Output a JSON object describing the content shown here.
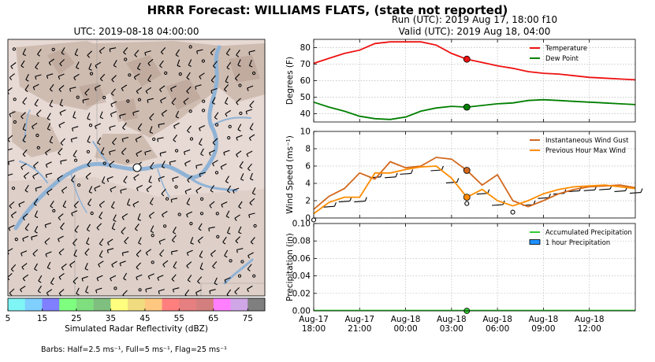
{
  "figure": {
    "suptitle": "HRRR Forecast: WILLIAMS FLATS, (state not reported)",
    "map_title": "UTC: 2019-08-18 04:00:00",
    "run_line": "Run (UTC): 2019 Aug 17, 18:00 f10",
    "valid_line": "Valid (UTC): 2019 Aug 18, 04:00",
    "colorbar_label": "Simulated Radar Reflectivity (dBZ)",
    "colorbar_ticks": [
      "5",
      "15",
      "25",
      "35",
      "45",
      "55",
      "65",
      "75"
    ],
    "colorbar_colors": [
      "#7ff5f5",
      "#7fcfff",
      "#7f7fff",
      "#7fff7f",
      "#7fdf7f",
      "#7fbf7f",
      "#ffff7f",
      "#f0dc7f",
      "#ffc77f",
      "#ff7f7f",
      "#e67f7f",
      "#d47f7f",
      "#ff7fff",
      "#cfa6e6",
      "#7f7f7f"
    ],
    "barbs_note": "Barbs: Half=2.5 ms⁻¹, Full=5 ms⁻¹, Flag=25 ms⁻¹"
  },
  "chart_data": [
    {
      "type": "line",
      "ylabel": "Degrees (F)",
      "ylim": [
        35,
        85
      ],
      "yticks": [
        "40",
        "50",
        "60",
        "70",
        "80"
      ],
      "grid": true,
      "legend_position": "top-right",
      "x": [
        -3,
        -2,
        -1,
        0,
        1,
        2,
        3,
        4,
        5,
        6,
        7,
        8,
        9,
        10,
        11,
        12,
        13,
        14,
        15,
        16,
        17,
        18
      ],
      "series": [
        {
          "name": "Temperature",
          "color": "#ee1111",
          "values": [
            70.5,
            73.5,
            76.5,
            78.5,
            82.5,
            83.5,
            83.5,
            83.5,
            81.5,
            76.5,
            73,
            71,
            69,
            67.5,
            65.5,
            64.5,
            64,
            63,
            62,
            61.5,
            61,
            60.5
          ]
        },
        {
          "name": "Dew Point",
          "color": "#007f00",
          "values": [
            47,
            44,
            41.5,
            38.5,
            37,
            36.5,
            38,
            41.5,
            43.5,
            44.5,
            44,
            45,
            46,
            46.5,
            48,
            48.5,
            48,
            47.5,
            47,
            46.5,
            46,
            45.5
          ]
        }
      ],
      "marker_x": 7
    },
    {
      "type": "line",
      "ylabel": "Wind Speed (ms⁻¹)",
      "ylim": [
        0,
        10
      ],
      "yticks": [
        "0",
        "2",
        "4",
        "6",
        "8",
        "10"
      ],
      "grid": true,
      "legend_position": "top-right",
      "x": [
        -3,
        -2,
        -1,
        0,
        1,
        2,
        3,
        4,
        5,
        6,
        7,
        8,
        9,
        10,
        11,
        12,
        13,
        14,
        15,
        16,
        17,
        18
      ],
      "series": [
        {
          "name": "Instantaneous Wind Gust",
          "color": "#d2691e",
          "values": [
            1,
            2.5,
            3.4,
            5.2,
            4.5,
            6.5,
            5.8,
            6,
            7,
            6.8,
            5.5,
            3.8,
            5,
            2,
            1.3,
            2,
            2.8,
            3.3,
            3.6,
            3.7,
            3.8,
            3.5
          ]
        },
        {
          "name": "Previous Hour Max Wind",
          "color": "#ff8c00",
          "values": [
            0.5,
            1.8,
            2.4,
            2.4,
            5.2,
            5.2,
            5.6,
            5.9,
            6,
            4.6,
            2.4,
            3.3,
            2,
            1.4,
            2,
            2.8,
            3.3,
            3.6,
            3.7,
            3.8,
            3.6,
            3.4
          ]
        }
      ],
      "marker_x": 7
    },
    {
      "type": "line",
      "ylabel": "Precipitation (in)",
      "ylim": [
        0,
        0.1
      ],
      "yticks": [
        "0.00",
        "0.02",
        "0.04",
        "0.06",
        "0.08",
        "0.10"
      ],
      "grid": true,
      "legend_position": "top-right",
      "x": [
        -3,
        -2,
        -1,
        0,
        1,
        2,
        3,
        4,
        5,
        6,
        7,
        8,
        9,
        10,
        11,
        12,
        13,
        14,
        15,
        16,
        17,
        18
      ],
      "series": [
        {
          "name": "Accumulated Precipitation",
          "color": "#33cc33",
          "values": [
            0,
            0,
            0,
            0,
            0,
            0,
            0,
            0,
            0,
            0,
            0,
            0,
            0,
            0,
            0,
            0,
            0,
            0,
            0,
            0,
            0,
            0
          ]
        },
        {
          "name": "1 hour Precipitation",
          "color": "#1e90ff",
          "values": [
            0,
            0,
            0,
            0,
            0,
            0,
            0,
            0,
            0,
            0,
            0,
            0,
            0,
            0,
            0,
            0,
            0,
            0,
            0,
            0,
            0,
            0
          ]
        }
      ],
      "marker_x": 7,
      "xtick_labels": [
        [
          "Aug-17",
          "18:00"
        ],
        [
          "Aug-17",
          "21:00"
        ],
        [
          "Aug-18",
          "00:00"
        ],
        [
          "Aug-18",
          "03:00"
        ],
        [
          "Aug-18",
          "06:00"
        ],
        [
          "Aug-18",
          "09:00"
        ],
        [
          "Aug-18",
          "12:00"
        ]
      ]
    }
  ]
}
